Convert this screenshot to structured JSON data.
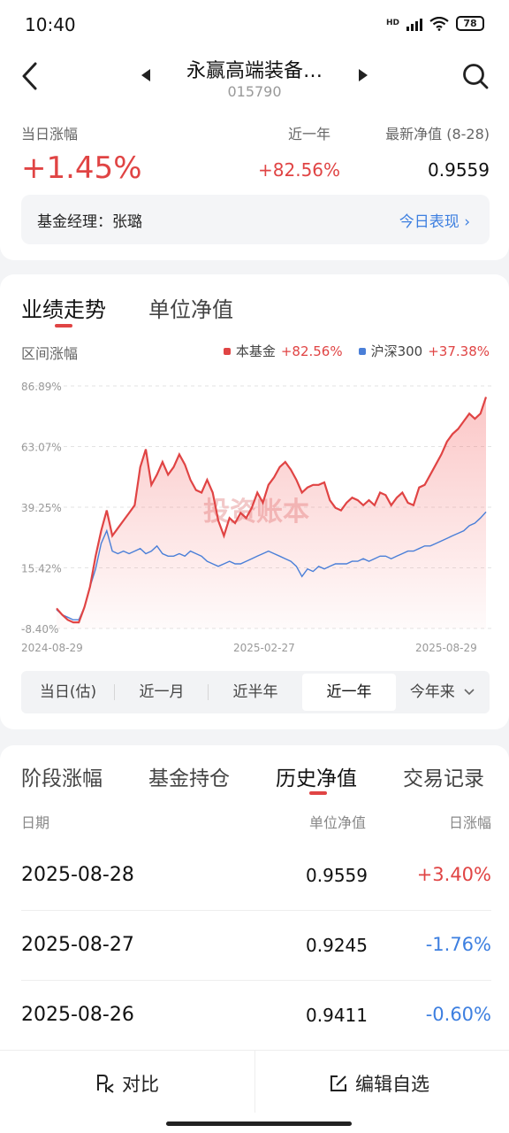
{
  "status": {
    "time": "10:40",
    "hd": "HD",
    "battery": "78"
  },
  "header": {
    "title": "永赢高端装备…",
    "code": "015790"
  },
  "summary": {
    "today_label": "当日涨幅",
    "today_value": "+1.45%",
    "year_label": "近一年",
    "year_value": "+82.56%",
    "nav_label": "最新净值 (8-28)",
    "nav_value": "0.9559",
    "manager_label": "基金经理：张璐",
    "today_perf": "今日表现 ›"
  },
  "chart_tabs": [
    "业绩走势",
    "单位净值"
  ],
  "chart_range_label": "区间涨幅",
  "legend": [
    {
      "name": "本基金",
      "value": "+82.56%",
      "color": "#e04444"
    },
    {
      "name": "沪深300",
      "value": "+37.38%",
      "color": "#4a7fd8"
    }
  ],
  "watermark": "投资账本",
  "chart_data": {
    "type": "line",
    "y_ticks": [
      "86.89%",
      "63.07%",
      "39.25%",
      "15.42%",
      "-8.40%"
    ],
    "ylim": [
      -8.4,
      86.89
    ],
    "x_ticks": [
      "2024-08-29",
      "2025-02-27",
      "2025-08-29"
    ],
    "series": [
      {
        "name": "本基金",
        "color": "#e04444",
        "values": [
          -0.5,
          -3,
          -5,
          -6,
          -6,
          0,
          8,
          20,
          30,
          38,
          28,
          31,
          34,
          37,
          40,
          55,
          62,
          48,
          52,
          57,
          52,
          55,
          60,
          56,
          50,
          46,
          45,
          50,
          45,
          34,
          28,
          35,
          33,
          37,
          35,
          39,
          45,
          41,
          48,
          51,
          55,
          57,
          54,
          50,
          45,
          47,
          48,
          48,
          49,
          42,
          39,
          38,
          41,
          43,
          42,
          40,
          42,
          40,
          45,
          44,
          40,
          43,
          45,
          41,
          40,
          47,
          48,
          52,
          56,
          60,
          65,
          68,
          70,
          73,
          76,
          74,
          76,
          82.56
        ]
      },
      {
        "name": "沪深300",
        "color": "#4a7fd8",
        "values": [
          -1,
          -3,
          -4,
          -5,
          -5,
          0,
          8,
          15,
          25,
          30,
          22,
          21,
          22,
          21,
          22,
          23,
          21,
          22,
          24,
          21,
          20,
          20,
          21,
          20,
          22,
          21,
          20,
          18,
          17,
          16,
          17,
          18,
          17,
          17,
          18,
          19,
          20,
          21,
          22,
          21,
          20,
          19,
          18,
          16,
          12,
          15,
          14,
          16,
          15,
          16,
          17,
          17,
          17,
          18,
          18,
          19,
          18,
          19,
          20,
          20,
          19,
          20,
          21,
          22,
          22,
          23,
          24,
          24,
          25,
          26,
          27,
          28,
          29,
          30,
          32,
          33,
          35,
          37.38
        ]
      }
    ]
  },
  "periods": [
    "当日(估)",
    "近一月",
    "近半年",
    "近一年",
    "今年来"
  ],
  "history_tabs": [
    "阶段涨幅",
    "基金持仓",
    "历史净值",
    "交易记录"
  ],
  "history_cols": [
    "日期",
    "单位净值",
    "日涨幅"
  ],
  "history_rows": [
    {
      "date": "2025-08-28",
      "nav": "0.9559",
      "change": "+3.40%"
    },
    {
      "date": "2025-08-27",
      "nav": "0.9245",
      "change": "-1.76%"
    },
    {
      "date": "2025-08-26",
      "nav": "0.9411",
      "change": "-0.60%"
    }
  ],
  "bottom": {
    "compare": "对比",
    "edit": "编辑自选"
  }
}
